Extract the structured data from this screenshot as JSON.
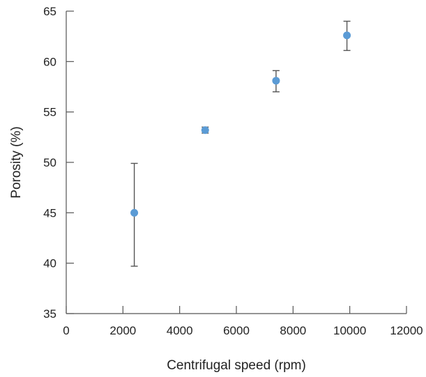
{
  "chart_data": {
    "type": "scatter",
    "title": "",
    "xlabel": "Centrifugal speed (rpm)",
    "ylabel": "Porosity (%)",
    "xlim": [
      0,
      12000
    ],
    "ylim": [
      35,
      65
    ],
    "x_ticks": [
      0,
      2000,
      4000,
      6000,
      8000,
      10000,
      12000
    ],
    "y_ticks": [
      35,
      40,
      45,
      50,
      55,
      60,
      65
    ],
    "grid": false,
    "legend": "none",
    "marker_color": "#5b9bd5",
    "series": [
      {
        "points": [
          {
            "x": 2400,
            "y": 45.0,
            "err_low": 5.3,
            "err_high": 4.9
          },
          {
            "x": 4900,
            "y": 53.2,
            "err_low": 0.3,
            "err_high": 0.3
          },
          {
            "x": 7400,
            "y": 58.1,
            "err_low": 1.1,
            "err_high": 1.0
          },
          {
            "x": 9900,
            "y": 62.6,
            "err_low": 1.5,
            "err_high": 1.4
          }
        ]
      }
    ]
  }
}
